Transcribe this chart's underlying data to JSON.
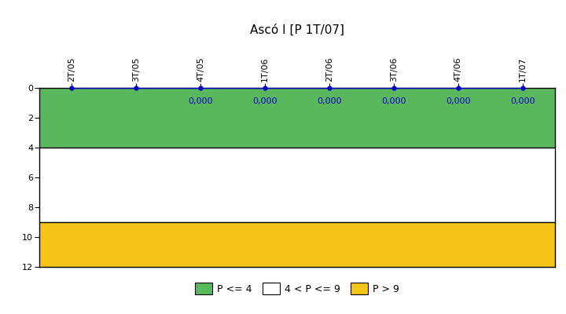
{
  "title": "Ascó I [P 1T/07]",
  "x_labels": [
    "2T/05",
    "3T/05",
    "4T/05",
    "1T/06",
    "2T/06",
    "3T/06",
    "4T/06",
    "1T/07"
  ],
  "data_x": [
    0,
    1,
    2,
    3,
    4,
    5,
    6,
    7
  ],
  "data_y": [
    0.0,
    0.0,
    0.0,
    0.0,
    0.0,
    0.0,
    0.0,
    0.0
  ],
  "annotated_indices": [
    2,
    3,
    4,
    5,
    6,
    7
  ],
  "annotated_values": [
    "0,000",
    "0,000",
    "0,000",
    "0,000",
    "0,000",
    "0,000"
  ],
  "ylim": [
    0,
    12
  ],
  "yticks": [
    0,
    2,
    4,
    6,
    8,
    10,
    12
  ],
  "zone_green": {
    "ymin": 0,
    "ymax": 4,
    "color": "#5ab85c"
  },
  "zone_white": {
    "ymin": 4,
    "ymax": 9,
    "color": "#ffffff"
  },
  "zone_yellow": {
    "ymin": 9,
    "ymax": 12,
    "color": "#f5c518"
  },
  "data_color": "#0000cc",
  "point_color": "#0000cc",
  "annotation_color": "#0000cc",
  "legend_labels": [
    "P <= 4",
    "4 < P <= 9",
    "P > 9"
  ],
  "legend_colors": [
    "#5ab85c",
    "#ffffff",
    "#f5c518"
  ],
  "title_fontsize": 11,
  "tick_fontsize": 8,
  "annotation_fontsize": 8,
  "fig_width": 7.2,
  "fig_height": 4.0,
  "dpi": 100
}
